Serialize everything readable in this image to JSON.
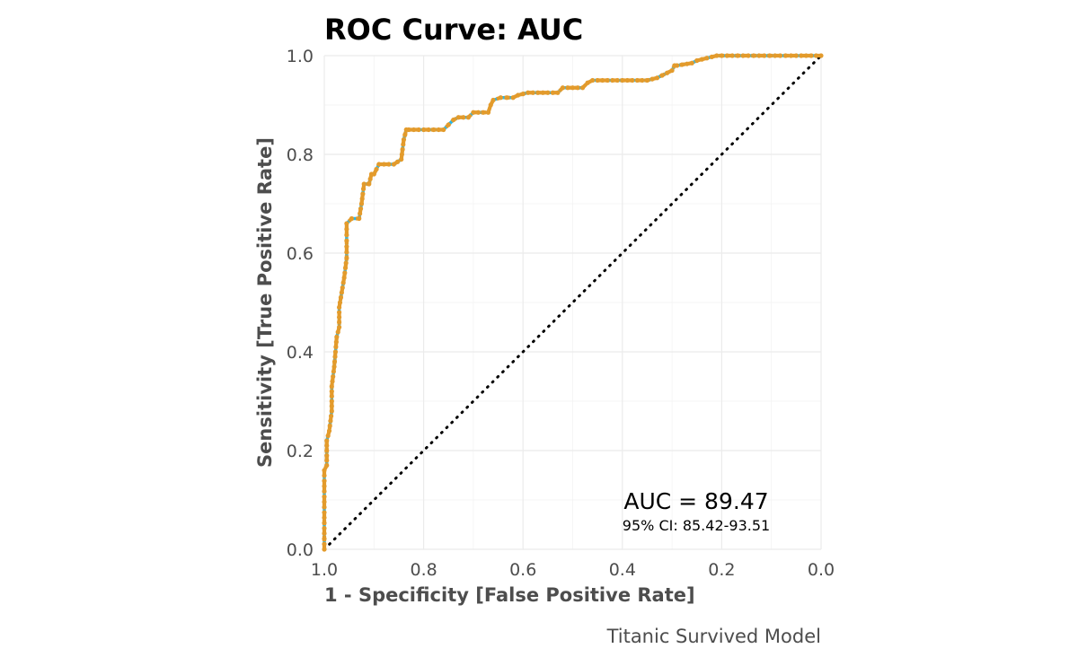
{
  "chart_data": {
    "type": "line",
    "title": "ROC Curve: AUC",
    "xlabel": "1 - Specificity [False Positive Rate]",
    "ylabel": "Sensitivity [True Positive Rate]",
    "caption": "Titanic Survived Model",
    "x_reversed": true,
    "xlim": [
      1.0,
      0.0
    ],
    "ylim": [
      0.0,
      1.0
    ],
    "x_ticks": [
      "1.0",
      "0.8",
      "0.6",
      "0.4",
      "0.2",
      "0.0"
    ],
    "y_ticks": [
      "0.0",
      "0.2",
      "0.4",
      "0.6",
      "0.8",
      "1.0"
    ],
    "x_tick_values": [
      1.0,
      0.8,
      0.6,
      0.4,
      0.2,
      0.0
    ],
    "y_tick_values": [
      0.0,
      0.2,
      0.4,
      0.6,
      0.8,
      1.0
    ],
    "grid": true,
    "annotation": {
      "auc_text": "AUC = 89.47",
      "ci_text": "95% CI: 85.42-93.51"
    },
    "colors": {
      "curve_line": "#29b6e8",
      "curve_points": "#e39b2c",
      "reference_line": "#000000",
      "grid": "#ebebeb"
    },
    "series": [
      {
        "name": "ROC",
        "specificity": [
          1.0,
          1.0,
          0.995,
          0.995,
          0.99,
          0.985,
          0.985,
          0.98,
          0.975,
          0.97,
          0.97,
          0.965,
          0.96,
          0.955,
          0.955,
          0.945,
          0.93,
          0.925,
          0.92,
          0.91,
          0.905,
          0.9,
          0.89,
          0.86,
          0.845,
          0.84,
          0.835,
          0.83,
          0.82,
          0.76,
          0.75,
          0.74,
          0.73,
          0.71,
          0.7,
          0.67,
          0.665,
          0.66,
          0.645,
          0.62,
          0.61,
          0.59,
          0.53,
          0.52,
          0.48,
          0.47,
          0.46,
          0.4,
          0.35,
          0.33,
          0.32,
          0.3,
          0.295,
          0.29,
          0.26,
          0.25,
          0.23,
          0.21,
          0.2,
          0.05,
          0.0
        ],
        "sensitivity": [
          0.0,
          0.16,
          0.17,
          0.22,
          0.24,
          0.28,
          0.33,
          0.37,
          0.43,
          0.45,
          0.49,
          0.52,
          0.55,
          0.59,
          0.66,
          0.67,
          0.67,
          0.7,
          0.74,
          0.74,
          0.76,
          0.76,
          0.78,
          0.78,
          0.79,
          0.83,
          0.85,
          0.85,
          0.85,
          0.85,
          0.86,
          0.87,
          0.875,
          0.875,
          0.885,
          0.885,
          0.9,
          0.91,
          0.915,
          0.915,
          0.92,
          0.925,
          0.925,
          0.935,
          0.935,
          0.945,
          0.95,
          0.95,
          0.95,
          0.955,
          0.96,
          0.97,
          0.98,
          0.98,
          0.985,
          0.99,
          0.995,
          1.0,
          1.0,
          1.0,
          1.0
        ]
      }
    ]
  }
}
